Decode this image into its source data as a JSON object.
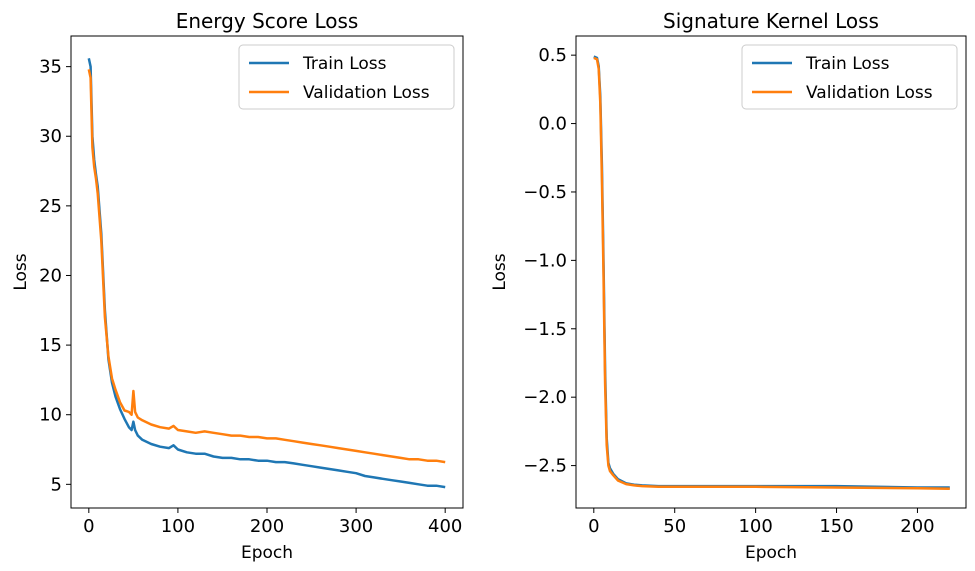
{
  "colors": {
    "train": "#1f77b4",
    "validation": "#ff7f0e"
  },
  "chart_data": [
    {
      "type": "line",
      "title": "Energy Score Loss",
      "xlabel": "Epoch",
      "ylabel": "Loss",
      "xlim": [
        -20,
        420
      ],
      "ylim": [
        3.3,
        37.2
      ],
      "xticks": [
        0,
        100,
        200,
        300,
        400
      ],
      "yticks": [
        5,
        10,
        15,
        20,
        25,
        30,
        35
      ],
      "ytick_labels": [
        "5",
        "10",
        "15",
        "20",
        "25",
        "30",
        "35"
      ],
      "legend": "top-right",
      "grid": false,
      "series": [
        {
          "name": "Train Loss",
          "x": [
            0,
            2,
            4,
            6,
            8,
            10,
            14,
            18,
            22,
            26,
            30,
            35,
            40,
            45,
            48,
            50,
            52,
            55,
            60,
            70,
            80,
            90,
            95,
            100,
            110,
            120,
            130,
            140,
            150,
            160,
            170,
            180,
            190,
            200,
            210,
            220,
            230,
            240,
            250,
            260,
            270,
            280,
            290,
            300,
            310,
            320,
            330,
            340,
            350,
            360,
            370,
            380,
            390,
            400
          ],
          "y": [
            35.6,
            35.0,
            30.0,
            28.3,
            27.3,
            26.4,
            23.0,
            17.5,
            14.0,
            12.3,
            11.3,
            10.4,
            9.7,
            9.1,
            8.9,
            9.5,
            8.9,
            8.5,
            8.2,
            7.9,
            7.7,
            7.6,
            7.8,
            7.5,
            7.3,
            7.2,
            7.2,
            7.0,
            6.9,
            6.9,
            6.8,
            6.8,
            6.7,
            6.7,
            6.6,
            6.6,
            6.5,
            6.4,
            6.3,
            6.2,
            6.1,
            6.0,
            5.9,
            5.8,
            5.6,
            5.5,
            5.4,
            5.3,
            5.2,
            5.1,
            5.0,
            4.9,
            4.9,
            4.8
          ]
        },
        {
          "name": "Validation Loss",
          "x": [
            0,
            2,
            4,
            6,
            8,
            10,
            14,
            18,
            22,
            26,
            30,
            35,
            40,
            45,
            48,
            50,
            52,
            55,
            60,
            70,
            80,
            90,
            95,
            100,
            110,
            120,
            130,
            140,
            150,
            160,
            170,
            180,
            190,
            200,
            210,
            220,
            230,
            240,
            250,
            260,
            270,
            280,
            290,
            300,
            310,
            320,
            330,
            340,
            350,
            360,
            370,
            380,
            390,
            400
          ],
          "y": [
            34.8,
            34.2,
            29.2,
            27.8,
            27.0,
            25.9,
            22.5,
            17.0,
            14.2,
            12.6,
            11.8,
            10.9,
            10.3,
            10.2,
            10.0,
            11.7,
            10.2,
            9.8,
            9.6,
            9.3,
            9.1,
            9.0,
            9.2,
            8.9,
            8.8,
            8.7,
            8.8,
            8.7,
            8.6,
            8.5,
            8.5,
            8.4,
            8.4,
            8.3,
            8.3,
            8.2,
            8.1,
            8.0,
            7.9,
            7.8,
            7.7,
            7.6,
            7.5,
            7.4,
            7.3,
            7.2,
            7.1,
            7.0,
            6.9,
            6.8,
            6.8,
            6.7,
            6.7,
            6.6
          ]
        }
      ]
    },
    {
      "type": "line",
      "title": "Signature Kernel Loss",
      "xlabel": "Epoch",
      "ylabel": "Loss",
      "xlim": [
        -11,
        230
      ],
      "ylim": [
        -2.81,
        0.64
      ],
      "xticks": [
        0,
        50,
        100,
        150,
        200
      ],
      "yticks": [
        0.5,
        0.0,
        -0.5,
        -1.0,
        -1.5,
        -2.0,
        -2.5
      ],
      "ytick_labels": [
        "0.5",
        "0.0",
        "−0.5",
        "−1.0",
        "−1.5",
        "−2.0",
        "−2.5"
      ],
      "legend": "top-right",
      "grid": false,
      "series": [
        {
          "name": "Train Loss",
          "x": [
            0,
            2,
            3,
            4,
            5,
            6,
            7,
            8,
            9,
            10,
            12,
            15,
            20,
            25,
            30,
            40,
            50,
            100,
            150,
            200,
            220
          ],
          "y": [
            0.49,
            0.48,
            0.42,
            0.2,
            -0.3,
            -1.0,
            -1.8,
            -2.3,
            -2.48,
            -2.52,
            -2.56,
            -2.6,
            -2.63,
            -2.64,
            -2.645,
            -2.65,
            -2.65,
            -2.65,
            -2.65,
            -2.66,
            -2.66
          ]
        },
        {
          "name": "Validation Loss",
          "x": [
            0,
            2,
            3,
            4,
            5,
            6,
            7,
            8,
            9,
            10,
            12,
            15,
            20,
            25,
            30,
            40,
            50,
            100,
            150,
            200,
            220
          ],
          "y": [
            0.48,
            0.47,
            0.4,
            0.15,
            -0.4,
            -1.1,
            -1.9,
            -2.35,
            -2.5,
            -2.54,
            -2.57,
            -2.61,
            -2.635,
            -2.645,
            -2.65,
            -2.655,
            -2.655,
            -2.655,
            -2.66,
            -2.665,
            -2.67
          ]
        }
      ]
    }
  ]
}
